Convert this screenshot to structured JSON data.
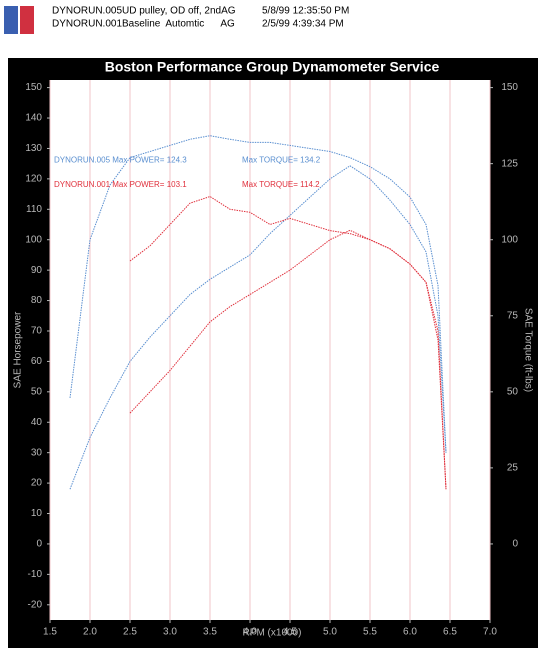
{
  "header": {
    "rows": [
      {
        "file": "DYNORUN.005",
        "desc": "UD pulley, OD off, 2ndAG",
        "date": "5/8/99 12:35:50 PM"
      },
      {
        "file": "DYNORUN.001",
        "desc": "Baseline  Automtic      AG",
        "date": "2/5/99 4:39:34 PM"
      }
    ]
  },
  "chart_data": {
    "type": "line",
    "title": "Boston Performance Group Dynamometer Service",
    "x_label": "RPM (x1000)",
    "y_label": "SAE Horsepower",
    "y2_label": "SAE Torque (ft-lbs)",
    "x": [
      1.75,
      2.0,
      2.25,
      2.5,
      2.75,
      3.0,
      3.25,
      3.5,
      3.75,
      4.0,
      4.25,
      4.5,
      4.75,
      5.0,
      5.25,
      5.5,
      5.75,
      6.0,
      6.2,
      6.35,
      6.45
    ],
    "series": [
      {
        "name": "DYNORUN.005 Power",
        "color": "#5a8fd0",
        "values": [
          18,
          35,
          48,
          60,
          68,
          75,
          82,
          87,
          91,
          95,
          102,
          108,
          114,
          120,
          124.3,
          120,
          113,
          105,
          96,
          75,
          30
        ]
      },
      {
        "name": "DYNORUN.005 Torque",
        "color": "#5a8fd0",
        "axis": "y2",
        "values": [
          48,
          100,
          118,
          127,
          129,
          131,
          133,
          134.2,
          133,
          132,
          132,
          131,
          130,
          129,
          127,
          124,
          120,
          114,
          105,
          85,
          30
        ]
      },
      {
        "name": "DYNORUN.001 Power",
        "color": "#e0303c",
        "values": [
          null,
          null,
          null,
          43,
          50,
          57,
          65,
          73,
          78,
          82,
          86,
          90,
          95,
          100,
          103.1,
          100,
          97,
          92,
          86,
          70,
          18
        ]
      },
      {
        "name": "DYNORUN.001 Torque",
        "color": "#e0303c",
        "axis": "y2",
        "values": [
          null,
          null,
          null,
          93,
          98,
          105,
          112,
          114.2,
          110,
          109,
          105,
          107,
          105,
          103,
          102,
          100,
          97,
          92,
          86,
          67,
          18
        ]
      }
    ],
    "annotations": [
      {
        "text": "DYNORUN.005  Max POWER= 124.3",
        "x": 1.55,
        "y": 126,
        "color": "#5a8fd0"
      },
      {
        "text": "Max TORQUE= 134.2",
        "x": 3.9,
        "y": 126,
        "color": "#5a8fd0"
      },
      {
        "text": "DYNORUN.001  Max POWER= 103.1",
        "x": 1.55,
        "y": 118,
        "color": "#e0303c"
      },
      {
        "text": "Max TORQUE= 114.2",
        "x": 3.9,
        "y": 118,
        "color": "#e0303c"
      }
    ],
    "xlim": [
      1.5,
      7.0
    ],
    "xticks": [
      1.5,
      {
        "value": 2,
        "label": "2.0"
      },
      2.5,
      {
        "value": 3,
        "label": "3.0"
      },
      3.5,
      {
        "value": 4,
        "label": "4.0"
      },
      4.5,
      {
        "value": 5,
        "label": "5.0"
      },
      5.5,
      {
        "value": 6,
        "label": "6.0"
      },
      6.5,
      {
        "value": 7,
        "label": "7.0"
      }
    ],
    "ylim": [
      -25,
      152.5
    ],
    "yticks": [
      -20,
      -10,
      0,
      10,
      20,
      30,
      40,
      50,
      60,
      70,
      80,
      90,
      100,
      110,
      120,
      130,
      140,
      150
    ],
    "y2lim": [
      -25,
      152.5
    ],
    "y2ticks": [
      0,
      25,
      50,
      75,
      100,
      125,
      150
    ],
    "grid": "x",
    "grid_color": "#f2c4c8"
  }
}
